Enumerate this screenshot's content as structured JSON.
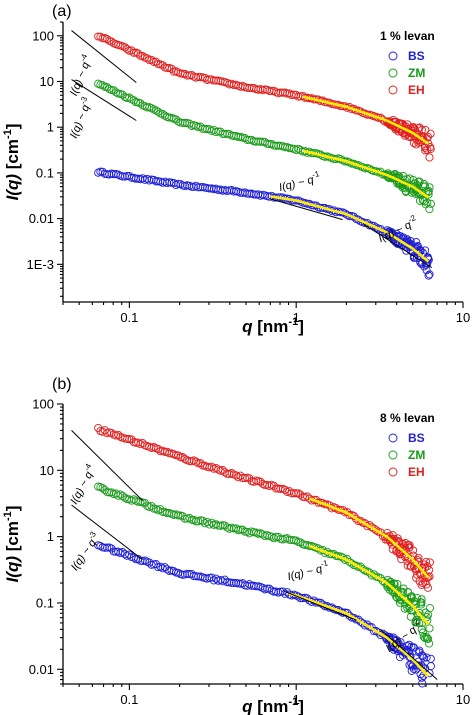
{
  "chart_data": [
    {
      "panel_label": "(a)",
      "type": "scatter",
      "xscale": "log",
      "yscale": "log",
      "xlim": [
        0.04,
        10
      ],
      "ylim": [
        0.00015,
        200
      ],
      "xticks": [
        0.1,
        1,
        10
      ],
      "xtick_labels": [
        "0.1",
        "1",
        "10"
      ],
      "yticks": [
        100,
        10,
        1,
        0.1,
        0.01,
        0.001
      ],
      "ytick_labels": [
        "100",
        "10",
        "1",
        "0.1",
        "0.01",
        "1E-3"
      ],
      "xlabel": {
        "main": "q",
        "unit": " [nm",
        "exp": "-1",
        "close": "]"
      },
      "ylabel": {
        "main": "I(q)",
        "unit": " [cm",
        "exp": "-1",
        "close": "]"
      },
      "legend": {
        "title": "1 % levan",
        "position": "top-right"
      },
      "series": [
        {
          "name": "BS",
          "color": "#1f1fd6",
          "x_range": [
            0.065,
            6.3
          ],
          "points": [
            [
              0.065,
              0.105
            ],
            [
              0.2,
              0.055
            ],
            [
              0.5,
              0.037
            ],
            [
              1.0,
              0.025
            ],
            [
              2.0,
              0.0125
            ],
            [
              3.5,
              0.005
            ],
            [
              5.0,
              0.0022
            ],
            [
              6.3,
              0.0011
            ]
          ]
        },
        {
          "name": "ZM",
          "color": "#1a9a1a",
          "x_range": [
            0.065,
            6.3
          ],
          "points": [
            [
              0.065,
              9.0
            ],
            [
              0.2,
              1.3
            ],
            [
              0.5,
              0.55
            ],
            [
              1.0,
              0.33
            ],
            [
              2.0,
              0.18
            ],
            [
              3.5,
              0.09
            ],
            [
              5.0,
              0.05
            ],
            [
              6.3,
              0.028
            ]
          ]
        },
        {
          "name": "EH",
          "color": "#e01f1f",
          "x_range": [
            0.065,
            6.3
          ],
          "points": [
            [
              0.065,
              100
            ],
            [
              0.2,
              15
            ],
            [
              0.5,
              7.5
            ],
            [
              1.0,
              5.0
            ],
            [
              2.0,
              2.8
            ],
            [
              3.5,
              1.4
            ],
            [
              5.0,
              0.75
            ],
            [
              6.3,
              0.42
            ]
          ]
        }
      ],
      "fits": [
        {
          "series": "BS",
          "x_range": [
            0.7,
            6.2
          ]
        },
        {
          "series": "ZM",
          "x_range": [
            1.1,
            6.2
          ]
        },
        {
          "series": "EH",
          "x_range": [
            1.1,
            6.2
          ]
        }
      ],
      "guides": [
        {
          "label_main": "I(q) ~ q",
          "label_exp": "-4",
          "x": [
            0.045,
            0.11
          ],
          "y": [
            130,
            9.5
          ],
          "label_pos": [
            0.048,
            4.7
          ],
          "label_angle": -68
        },
        {
          "label_main": "I(q) ~ q",
          "label_exp": "-3",
          "x": [
            0.045,
            0.11
          ],
          "y": [
            11,
            1.4
          ],
          "label_pos": [
            0.048,
            0.55
          ],
          "label_angle": -68
        },
        {
          "label_main": "I(q) ~ q",
          "label_exp": "-1",
          "x": [
            0.7,
            1.9
          ],
          "y": [
            0.027,
            0.0095
          ],
          "label_pos": [
            0.8,
            0.04
          ],
          "label_angle": -14
        },
        {
          "label_main": "I(q) ~ q",
          "label_exp": "-2",
          "x": [
            2.5,
            6.5
          ],
          "y": [
            0.0078,
            0.00085
          ],
          "label_pos": [
            3.2,
            0.003
          ],
          "label_angle": -26
        }
      ]
    },
    {
      "panel_label": "(b)",
      "type": "scatter",
      "xscale": "log",
      "yscale": "log",
      "xlim": [
        0.04,
        10
      ],
      "ylim": [
        0.006,
        100
      ],
      "xticks": [
        0.1,
        1,
        10
      ],
      "xtick_labels": [
        "0.1",
        "1",
        "10"
      ],
      "yticks": [
        100,
        10,
        1,
        0.1,
        0.01
      ],
      "ytick_labels": [
        "100",
        "10",
        "1",
        "0.1",
        "0.01"
      ],
      "xlabel": {
        "main": "q",
        "unit": " [nm",
        "exp": "-1",
        "close": "]"
      },
      "ylabel": {
        "main": "I(q)",
        "unit": " [cm",
        "exp": "-1",
        "close": "]"
      },
      "legend": {
        "title": "8 % levan",
        "position": "top-right"
      },
      "series": [
        {
          "name": "BS",
          "color": "#1f1fd6",
          "x_range": [
            0.065,
            6.3
          ],
          "points": [
            [
              0.065,
              0.75
            ],
            [
              0.2,
              0.28
            ],
            [
              0.5,
              0.19
            ],
            [
              1.0,
              0.13
            ],
            [
              2.0,
              0.07
            ],
            [
              3.5,
              0.03
            ],
            [
              5.0,
              0.014
            ],
            [
              6.3,
              0.0075
            ]
          ]
        },
        {
          "name": "ZM",
          "color": "#1a9a1a",
          "x_range": [
            0.065,
            6.3
          ],
          "points": [
            [
              0.065,
              5.5
            ],
            [
              0.2,
              2.0
            ],
            [
              0.5,
              1.2
            ],
            [
              1.0,
              0.85
            ],
            [
              2.0,
              0.45
            ],
            [
              3.5,
              0.2
            ],
            [
              5.0,
              0.09
            ],
            [
              6.3,
              0.045
            ]
          ]
        },
        {
          "name": "EH",
          "color": "#e01f1f",
          "x_range": [
            0.065,
            6.3
          ],
          "points": [
            [
              0.065,
              42
            ],
            [
              0.2,
              16
            ],
            [
              0.5,
              7.5
            ],
            [
              1.0,
              4.5
            ],
            [
              2.0,
              2.3
            ],
            [
              3.5,
              1.0
            ],
            [
              5.0,
              0.45
            ],
            [
              6.3,
              0.23
            ]
          ]
        }
      ],
      "fits": [
        {
          "series": "BS",
          "x_range": [
            0.9,
            6.2
          ]
        },
        {
          "series": "ZM",
          "x_range": [
            1.2,
            6.2
          ]
        },
        {
          "series": "EH",
          "x_range": [
            1.2,
            6.2
          ]
        }
      ],
      "guides": [
        {
          "label_main": "I(q) ~ q",
          "label_exp": "-4",
          "x": [
            0.045,
            0.12
          ],
          "y": [
            40,
            3.5
          ],
          "label_pos": [
            0.048,
            3.0
          ],
          "label_angle": -62
        },
        {
          "label_main": "I(q) ~ q",
          "label_exp": "-3",
          "x": [
            0.045,
            0.12
          ],
          "y": [
            3.0,
            0.45
          ],
          "label_pos": [
            0.048,
            0.3
          ],
          "label_angle": -55
        },
        {
          "label_main": "I(q) ~ q",
          "label_exp": "-1",
          "x": [
            0.85,
            2.3
          ],
          "y": [
            0.15,
            0.055
          ],
          "label_pos": [
            0.9,
            0.22
          ],
          "label_angle": -14
        },
        {
          "label_main": "I(q) ~ q",
          "label_exp": "-2",
          "x": [
            3.2,
            7.0
          ],
          "y": [
            0.04,
            0.007
          ],
          "label_pos": [
            3.6,
            0.018
          ],
          "label_angle": -37
        }
      ]
    }
  ]
}
